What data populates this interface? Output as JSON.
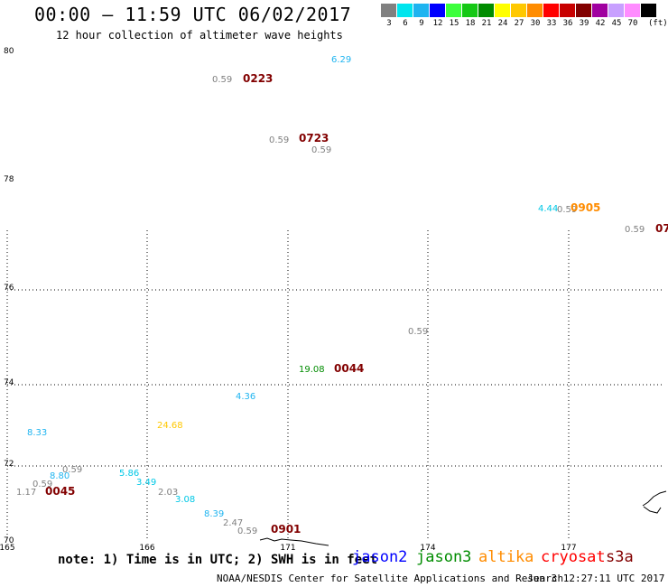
{
  "header": {
    "title": "00:00 – 11:59 UTC 06/02/2017",
    "subtitle": "12 hour collection of altimeter wave heights"
  },
  "legend": {
    "unit": "(ft)",
    "bins": [
      {
        "label": "3",
        "color": "#808080"
      },
      {
        "label": "6",
        "color": "#00e5ee"
      },
      {
        "label": "9",
        "color": "#1eb4f0"
      },
      {
        "label": "12",
        "color": "#0000ff"
      },
      {
        "label": "15",
        "color": "#3cff3c"
      },
      {
        "label": "18",
        "color": "#14c814"
      },
      {
        "label": "21",
        "color": "#008c00"
      },
      {
        "label": "24",
        "color": "#ffff00"
      },
      {
        "label": "27",
        "color": "#ffc800"
      },
      {
        "label": "30",
        "color": "#ff8c00"
      },
      {
        "label": "33",
        "color": "#ff0000"
      },
      {
        "label": "36",
        "color": "#c80000"
      },
      {
        "label": "39",
        "color": "#820000"
      },
      {
        "label": "42",
        "color": "#a000a0"
      },
      {
        "label": "45",
        "color": "#c8a0ff"
      },
      {
        "label": "70",
        "color": "#ff8cff"
      },
      {
        "label": "",
        "color": "#000000"
      }
    ]
  },
  "map": {
    "lat_labels": [
      "80",
      "78",
      "76",
      "74",
      "72",
      "70"
    ],
    "lon_labels": [
      "165",
      "166",
      "171",
      "174",
      "177"
    ]
  },
  "observations": [
    {
      "text": "6.29",
      "color": "#1eb4f0"
    },
    {
      "text": "0.59",
      "color": "#808080"
    },
    {
      "text": "0223",
      "color": "#820000"
    },
    {
      "text": "0.59",
      "color": "#808080"
    },
    {
      "text": "0723",
      "color": "#820000"
    },
    {
      "text": "0.59",
      "color": "#808080"
    },
    {
      "text": "4.44",
      "color": "#00c8e6"
    },
    {
      "text": "0.59",
      "color": "#808080"
    },
    {
      "text": "0905",
      "color": "#ff8c00"
    },
    {
      "text": "0.59",
      "color": "#808080"
    },
    {
      "text": "07",
      "color": "#820000"
    },
    {
      "text": "0.59",
      "color": "#808080"
    },
    {
      "text": "19.08",
      "color": "#008c00"
    },
    {
      "text": "0044",
      "color": "#820000"
    },
    {
      "text": "4.36",
      "color": "#1eb4f0"
    },
    {
      "text": "24.68",
      "color": "#ffc800"
    },
    {
      "text": "8.33",
      "color": "#1eb4f0"
    },
    {
      "text": "0.59",
      "color": "#808080"
    },
    {
      "text": "8.80",
      "color": "#1eb4f0"
    },
    {
      "text": "0.59",
      "color": "#808080"
    },
    {
      "text": "1.17",
      "color": "#808080"
    },
    {
      "text": "0045",
      "color": "#820000"
    },
    {
      "text": "5.86",
      "color": "#00c8e6"
    },
    {
      "text": "3.49",
      "color": "#00c8e6"
    },
    {
      "text": "2.03",
      "color": "#808080"
    },
    {
      "text": "3.08",
      "color": "#00c8e6"
    },
    {
      "text": "8.39",
      "color": "#1eb4f0"
    },
    {
      "text": "2.47",
      "color": "#808080"
    },
    {
      "text": "0.59",
      "color": "#808080"
    },
    {
      "text": "0901",
      "color": "#820000"
    }
  ],
  "footer": {
    "note": "note: 1) Time is in UTC; 2) SWH is in feet",
    "satellites": [
      {
        "name": "jason2",
        "color": "#0000ff"
      },
      {
        "name": "jason3",
        "color": "#008c00"
      },
      {
        "name": "altika",
        "color": "#ff8c00"
      },
      {
        "name": "cryosat",
        "color": "#ff0000"
      },
      {
        "name": "s3a",
        "color": "#820000"
      }
    ],
    "credit": "NOAA/NESDIS Center for Satellite Applications and Research",
    "timestamp": "Jun  3 12:27:11 UTC 2017"
  }
}
